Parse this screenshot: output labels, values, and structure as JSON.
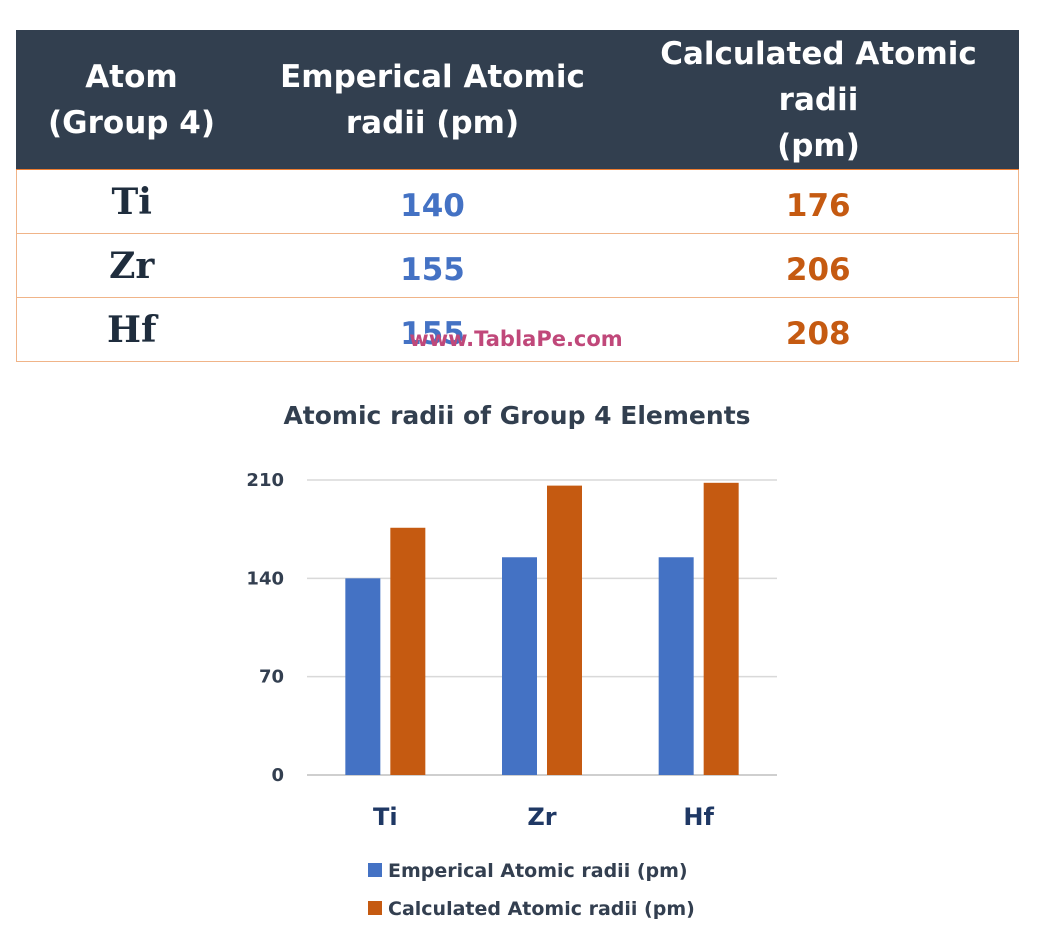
{
  "table": {
    "headers": [
      [
        "Atom",
        "(Group 4)"
      ],
      [
        "Emperical Atomic",
        "radii (pm)"
      ],
      [
        "Calculated Atomic radii",
        "(pm)"
      ]
    ],
    "rows": [
      {
        "atom": "Ti",
        "empirical": "140",
        "calculated": "176"
      },
      {
        "atom": "Zr",
        "empirical": "155",
        "calculated": "206"
      },
      {
        "atom": "Hf",
        "empirical": "155",
        "calculated": "208"
      }
    ]
  },
  "watermark": "www.TablaPe.com",
  "chart_data": {
    "type": "bar",
    "title": "Atomic radii of Group 4 Elements",
    "xlabel": "",
    "ylabel": "",
    "categories": [
      "Ti",
      "Zr",
      "Hf"
    ],
    "series": [
      {
        "name": "Emperical Atomic radii (pm)",
        "values": [
          140,
          155,
          155
        ],
        "color": "#4472c4"
      },
      {
        "name": "Calculated Atomic radii (pm)",
        "values": [
          176,
          206,
          208
        ],
        "color": "#c55a11"
      }
    ],
    "ylim": [
      0,
      210
    ],
    "yticks": [
      0,
      70,
      140,
      210
    ],
    "grid": true,
    "legend_position": "bottom"
  }
}
